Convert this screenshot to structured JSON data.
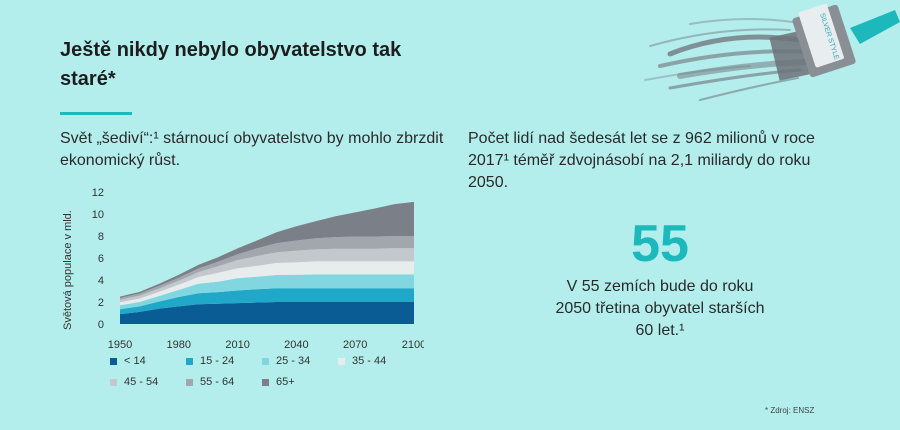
{
  "heading": "Ještě nikdy nebylo obyvatelstvo tak staré*",
  "subtitle": "Svět „šediví“:¹ stárnoucí obyvatelstvo by mohlo zbrzdit ekonomický růst.",
  "right_text": "Počet lidí nad šedesát let se z 962 milionů v roce 2017¹ téměř zdvojnásobí na 2,1 miliardy do roku 2050.",
  "highlight": {
    "number": "55",
    "caption": "V 55 zemích bude do roku 2050 třetina obyvatel starších 60 let.¹"
  },
  "source": "* Zdroj: ENSZ",
  "brush_label": "SILVER STYLE",
  "chart_data": {
    "type": "area",
    "stacked": true,
    "ylabel": "Světová populace v mld.",
    "xlabel": "",
    "x": [
      1950,
      1960,
      1970,
      1980,
      1990,
      2000,
      2010,
      2020,
      2030,
      2040,
      2050,
      2060,
      2070,
      2080,
      2090,
      2100
    ],
    "xticks": [
      1950,
      1980,
      2010,
      2040,
      2070,
      2100
    ],
    "ylim": [
      0,
      12
    ],
    "yticks": [
      0,
      2,
      4,
      6,
      8,
      10,
      12
    ],
    "grid": false,
    "legend_position": "bottom",
    "series": [
      {
        "name": "< 14",
        "color": "#0a5c94",
        "values": [
          0.9,
          1.1,
          1.4,
          1.6,
          1.8,
          1.85,
          1.9,
          1.95,
          2.0,
          2.0,
          2.0,
          2.0,
          2.0,
          2.0,
          2.0,
          2.0
        ]
      },
      {
        "name": "15 - 24",
        "color": "#21a8c8",
        "values": [
          0.45,
          0.5,
          0.65,
          0.85,
          1.0,
          1.05,
          1.15,
          1.2,
          1.25,
          1.25,
          1.25,
          1.25,
          1.25,
          1.25,
          1.25,
          1.25
        ]
      },
      {
        "name": "25 - 34",
        "color": "#82d6e0",
        "values": [
          0.35,
          0.4,
          0.5,
          0.65,
          0.85,
          0.95,
          1.1,
          1.15,
          1.2,
          1.22,
          1.25,
          1.25,
          1.25,
          1.25,
          1.25,
          1.25
        ]
      },
      {
        "name": "35 - 44",
        "color": "#e7eced",
        "values": [
          0.28,
          0.32,
          0.38,
          0.48,
          0.62,
          0.8,
          0.92,
          1.0,
          1.1,
          1.15,
          1.2,
          1.2,
          1.2,
          1.2,
          1.2,
          1.2
        ]
      },
      {
        "name": "45 - 54",
        "color": "#c3c8cc",
        "values": [
          0.22,
          0.26,
          0.3,
          0.36,
          0.45,
          0.6,
          0.75,
          0.88,
          0.98,
          1.05,
          1.1,
          1.15,
          1.15,
          1.15,
          1.2,
          1.2
        ]
      },
      {
        "name": "55 - 64",
        "color": "#a2a7ad",
        "values": [
          0.16,
          0.19,
          0.23,
          0.27,
          0.33,
          0.4,
          0.52,
          0.7,
          0.82,
          0.92,
          1.0,
          1.05,
          1.1,
          1.1,
          1.1,
          1.1
        ]
      },
      {
        "name": "65+",
        "color": "#7b8088",
        "values": [
          0.13,
          0.15,
          0.2,
          0.26,
          0.32,
          0.42,
          0.53,
          0.72,
          1.0,
          1.3,
          1.55,
          1.9,
          2.2,
          2.55,
          2.9,
          3.1
        ]
      }
    ]
  }
}
